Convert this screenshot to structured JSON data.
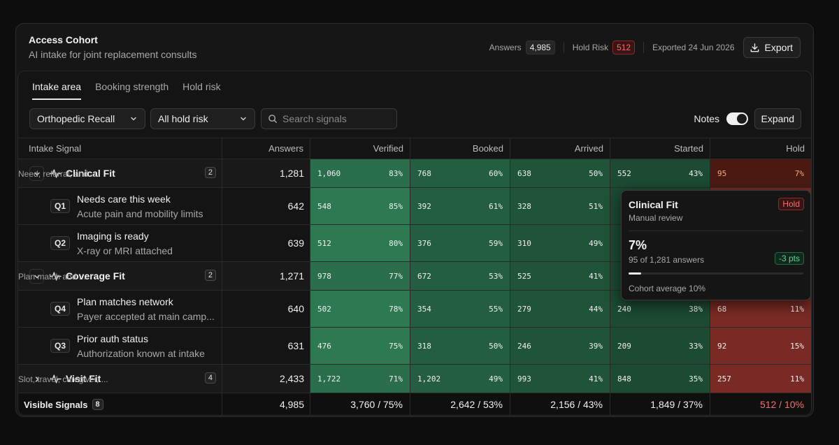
{
  "header": {
    "title": "Access Cohort",
    "subtitle": "AI intake for joint replacement consults",
    "answers_label": "Answers",
    "answers_value": "4,985",
    "hold_risk_label": "Hold Risk",
    "hold_risk_value": "512",
    "exported": "Exported 24 Jun 2026",
    "export_label": "Export"
  },
  "tabs": [
    {
      "label": "Intake area",
      "active": true
    },
    {
      "label": "Booking strength",
      "active": false
    },
    {
      "label": "Hold risk",
      "active": false
    }
  ],
  "filters": {
    "cohort_select": "Orthopedic Recall",
    "risk_select": "All hold risk",
    "search_placeholder": "Search signals",
    "notes_label": "Notes",
    "notes_on": true,
    "expand_label": "Expand"
  },
  "columns": [
    "Intake Signal",
    "Answers",
    "Verified",
    "Booked",
    "Arrived",
    "Started",
    "Hold"
  ],
  "colors": {
    "verified_strong": "#2d7a52",
    "verified": "#2a6e4b",
    "booked": "#235e40",
    "arrived": "#1f5439",
    "started": "#1c4a33",
    "hold_low": "#4a1a12",
    "hold_high": "#7a2a24"
  },
  "rows": [
    {
      "kind": "group",
      "expanded": true,
      "title": "Clinical Fit",
      "desc": "Need, referral, and ...",
      "count": "2",
      "answers": "1,281",
      "cells": [
        [
          "1,060",
          "83%"
        ],
        [
          "768",
          "60%"
        ],
        [
          "638",
          "50%"
        ],
        [
          "552",
          "43%"
        ],
        [
          "95",
          "7%"
        ]
      ]
    },
    {
      "kind": "sub",
      "q": "Q1",
      "title": "Needs care this week",
      "desc": "Acute pain and mobility limits",
      "answers": "642",
      "cells": [
        [
          "548",
          "85%"
        ],
        [
          "392",
          "61%"
        ],
        [
          "328",
          "51%"
        ],
        [
          "",
          ""
        ],
        [
          "",
          ""
        ]
      ]
    },
    {
      "kind": "sub",
      "q": "Q2",
      "title": "Imaging is ready",
      "desc": "X-ray or MRI attached",
      "answers": "639",
      "cells": [
        [
          "512",
          "80%"
        ],
        [
          "376",
          "59%"
        ],
        [
          "310",
          "49%"
        ],
        [
          "",
          ""
        ],
        [
          "",
          ""
        ]
      ]
    },
    {
      "kind": "group",
      "expanded": true,
      "title": "Coverage Fit",
      "desc": "Plan match and ...",
      "count": "2",
      "answers": "1,271",
      "cells": [
        [
          "978",
          "77%"
        ],
        [
          "672",
          "53%"
        ],
        [
          "525",
          "41%"
        ],
        [
          "",
          ""
        ],
        [
          "",
          ""
        ]
      ]
    },
    {
      "kind": "sub",
      "q": "Q4",
      "title": "Plan matches network",
      "desc": "Payer accepted at main camp...",
      "answers": "640",
      "cells": [
        [
          "502",
          "78%"
        ],
        [
          "354",
          "55%"
        ],
        [
          "279",
          "44%"
        ],
        [
          "240",
          "38%"
        ],
        [
          "68",
          "11%"
        ]
      ]
    },
    {
      "kind": "sub",
      "q": "Q3",
      "title": "Prior auth status",
      "desc": "Authorization known at intake",
      "answers": "631",
      "cells": [
        [
          "476",
          "75%"
        ],
        [
          "318",
          "50%"
        ],
        [
          "246",
          "39%"
        ],
        [
          "209",
          "33%"
        ],
        [
          "92",
          "15%"
        ]
      ]
    },
    {
      "kind": "group",
      "expanded": false,
      "title": "Visit Fit",
      "desc": "Slot, travel, caregiver, ...",
      "count": "4",
      "answers": "2,433",
      "cells": [
        [
          "1,722",
          "71%"
        ],
        [
          "1,202",
          "49%"
        ],
        [
          "993",
          "41%"
        ],
        [
          "848",
          "35%"
        ],
        [
          "257",
          "11%"
        ]
      ]
    }
  ],
  "footer": {
    "label": "Visible Signals",
    "count": "8",
    "answers": "4,985",
    "cells": [
      "3,760 / 75%",
      "2,642 / 53%",
      "2,156 / 43%",
      "1,849 / 37%",
      "512 / 10%"
    ]
  },
  "tooltip": {
    "title": "Clinical Fit",
    "subtitle": "Manual review",
    "badge": "Hold",
    "value": "7%",
    "of": "95 of 1,281 answers",
    "delta": "-3 pts",
    "fraction": 0.07,
    "average": "Cohort average 10%"
  }
}
